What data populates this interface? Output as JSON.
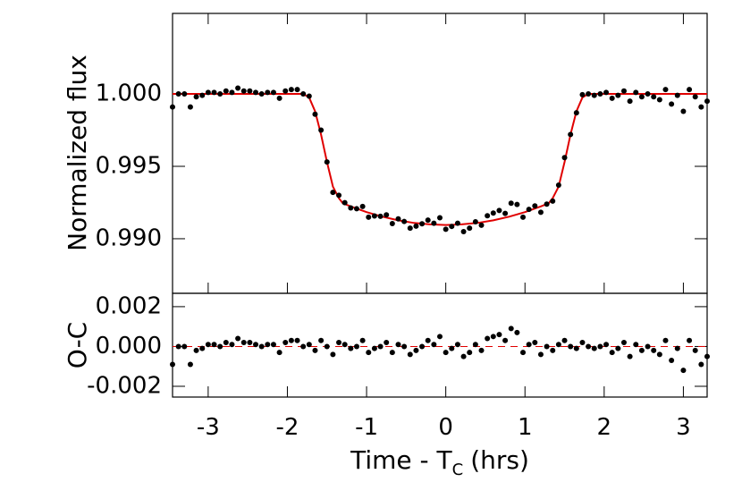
{
  "chart_data": [
    {
      "type": "scatter",
      "ylabel": "Normalized flux",
      "ylim": [
        0.98623,
        1.00556
      ],
      "yticks": [
        {
          "value": 0.99,
          "label": "0.990"
        },
        {
          "value": 0.995,
          "label": "0.995"
        },
        {
          "value": 1.0,
          "label": "1.000"
        }
      ],
      "x": [
        -3.45,
        -3.375,
        -3.3,
        -3.225,
        -3.15,
        -3.075,
        -3.0,
        -2.925,
        -2.85,
        -2.775,
        -2.7,
        -2.625,
        -2.55,
        -2.475,
        -2.4,
        -2.325,
        -2.25,
        -2.175,
        -2.1,
        -2.025,
        -1.95,
        -1.875,
        -1.8,
        -1.725,
        -1.65,
        -1.575,
        -1.5,
        -1.425,
        -1.35,
        -1.275,
        -1.2,
        -1.125,
        -1.05,
        -0.975,
        -0.9,
        -0.825,
        -0.75,
        -0.675,
        -0.6,
        -0.525,
        -0.45,
        -0.375,
        -0.3,
        -0.225,
        -0.15,
        -0.075,
        0,
        0.075,
        0.15,
        0.225,
        0.3,
        0.375,
        0.45,
        0.525,
        0.6,
        0.675,
        0.75,
        0.825,
        0.9,
        0.975,
        1.05,
        1.125,
        1.2,
        1.275,
        1.35,
        1.425,
        1.5,
        1.575,
        1.65,
        1.725,
        1.8,
        1.875,
        1.95,
        2.025,
        2.1,
        2.175,
        2.25,
        2.325,
        2.4,
        2.475,
        2.55,
        2.625,
        2.7,
        2.775,
        2.85,
        2.925,
        3.0,
        3.075,
        3.15,
        3.225,
        3.3
      ],
      "values": [
        0.9991,
        1.0,
        1.0,
        0.9991,
        0.9998,
        0.9999,
        1.0001,
        1.0001,
        1.0,
        1.0002,
        1.0001,
        1.0004,
        1.0002,
        1.0002,
        1.0001,
        1.0,
        1.0001,
        1.0001,
        0.9997,
        1.0002,
        1.0003,
        1.0003,
        1.0,
        0.99985,
        0.9986,
        0.9975,
        0.9953,
        0.9932,
        0.993,
        0.99249,
        0.99213,
        0.99207,
        0.99223,
        0.99149,
        0.99157,
        0.99155,
        0.99165,
        0.99105,
        0.99137,
        0.99119,
        0.99073,
        0.99087,
        0.99103,
        0.99129,
        0.99107,
        0.99145,
        0.99065,
        0.99085,
        0.99107,
        0.99049,
        0.99073,
        0.99117,
        0.99093,
        0.99159,
        0.99177,
        0.99195,
        0.99175,
        0.99245,
        0.99237,
        0.99149,
        0.99203,
        0.99227,
        0.99183,
        0.99239,
        0.9926,
        0.9937,
        0.9956,
        0.9972,
        0.9987,
        0.99995,
        1.0,
        0.9999,
        1.0,
        1.0001,
        0.9997,
        0.9999,
        1.0002,
        0.9995,
        1.0001,
        0.9998,
        1.0,
        0.9998,
        0.9996,
        1.0003,
        0.9993,
        0.9999,
        0.9988,
        1.0003,
        0.9998,
        0.9991,
        0.9995
      ],
      "color": "#000000",
      "model": {
        "color": "#e00000",
        "x": [
          -3.45,
          -1.8,
          -1.725,
          -1.65,
          -1.575,
          -1.5,
          -1.425,
          -1.35,
          -1.3,
          -1.2,
          -1.0,
          -0.8,
          -0.6,
          -0.4,
          -0.2,
          0,
          0.2,
          0.4,
          0.6,
          0.8,
          1.0,
          1.2,
          1.3,
          1.35,
          1.425,
          1.5,
          1.575,
          1.65,
          1.725,
          1.8,
          3.3
        ],
        "values": [
          1.0,
          1.0,
          0.99975,
          0.9988,
          0.9972,
          0.9953,
          0.9936,
          0.9928,
          0.99245,
          0.99223,
          0.99184,
          0.99152,
          0.99127,
          0.99109,
          0.99099,
          0.99095,
          0.99099,
          0.99109,
          0.99127,
          0.99152,
          0.99184,
          0.99223,
          0.99245,
          0.9928,
          0.9936,
          0.9953,
          0.9972,
          0.9988,
          0.99975,
          1.0,
          1.0
        ]
      }
    },
    {
      "type": "scatter",
      "ylabel": "O-C",
      "xlabel": "Time - T",
      "xlabel_subscript": "C",
      "xlabel_suffix": "(hrs)",
      "xlim": [
        -3.45,
        3.3
      ],
      "xticks": [
        -3,
        -2,
        -1,
        0,
        1,
        2,
        3
      ],
      "ylim": [
        -0.00254,
        0.00267
      ],
      "yticks": [
        {
          "value": -0.002,
          "label": "-0.002"
        },
        {
          "value": 0,
          "label": "0.000"
        },
        {
          "value": 0.002,
          "label": "0.002"
        }
      ],
      "color": "#000000",
      "reference_color": "#e00000",
      "values": [
        -0.0009,
        0,
        0,
        -0.0009,
        -0.0002,
        -0.0001,
        0.0001,
        0.0001,
        0,
        0.0002,
        0.0001,
        0.0004,
        0.0002,
        0.0002,
        0.0001,
        0,
        0.0001,
        0.0001,
        -0.0003,
        0.0002,
        0.0003,
        0.0003,
        0,
        0.0001,
        -0.0002,
        0.0003,
        0,
        -0.0004,
        0.0002,
        0.0001,
        -0.0001,
        0,
        0.0003,
        -0.0003,
        -0.0001,
        0,
        0.0002,
        -0.0003,
        0.0001,
        0,
        -0.0004,
        -0.0002,
        0,
        0.0003,
        0.0001,
        0.0005,
        -0.0003,
        -0.0001,
        0.0001,
        -0.0005,
        -0.0003,
        0.0001,
        -0.0002,
        0.0004,
        0.0005,
        0.0006,
        0.0003,
        0.0009,
        0.0007,
        -0.0003,
        0.0001,
        0.0002,
        -0.0004,
        0,
        -0.0002,
        0.0001,
        0.0003,
        0,
        -0.0001,
        0.0002,
        0,
        -0.0001,
        0,
        0.0001,
        -0.0003,
        -0.0001,
        0.0002,
        -0.0005,
        0.0001,
        -0.0002,
        0,
        -0.0002,
        -0.0004,
        0.0003,
        -0.0007,
        -0.0001,
        -0.0012,
        0.0003,
        -0.0002,
        -0.0009,
        -0.0005
      ]
    }
  ]
}
